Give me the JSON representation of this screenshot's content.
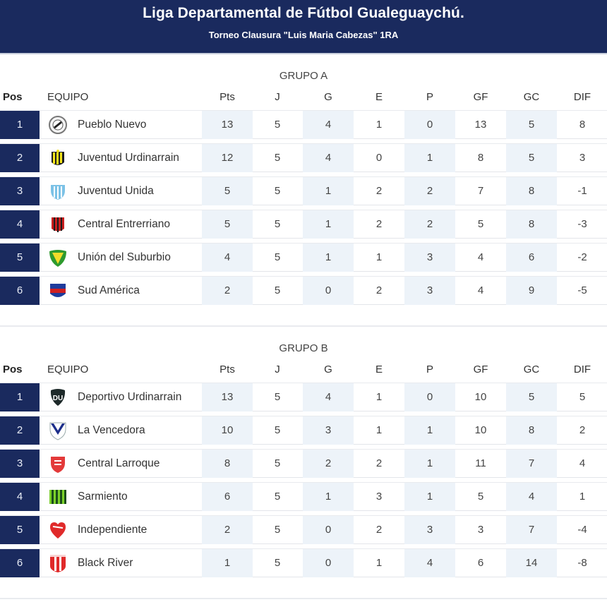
{
  "header": {
    "title": "Liga Departamental de Fútbol Gualeguaychú.",
    "subtitle": "Torneo Clausura \"Luis Maria Cabezas\" 1RA",
    "bg_color": "#1a2a5e"
  },
  "columns": [
    "Pos",
    "EQUIPO",
    "Pts",
    "J",
    "G",
    "E",
    "P",
    "GF",
    "GC",
    "DIF"
  ],
  "groups": [
    {
      "title": "GRUPO A",
      "rows": [
        {
          "pos": "1",
          "team": "Pueblo Nuevo",
          "logo": "pueblo-nuevo-crest",
          "pts": "13",
          "j": "5",
          "g": "4",
          "e": "1",
          "p": "0",
          "gf": "13",
          "gc": "5",
          "dif": "8"
        },
        {
          "pos": "2",
          "team": "Juventud Urdinarrain",
          "logo": "juventud-urdinarrain-crest",
          "pts": "12",
          "j": "5",
          "g": "4",
          "e": "0",
          "p": "1",
          "gf": "8",
          "gc": "5",
          "dif": "3"
        },
        {
          "pos": "3",
          "team": "Juventud Unida",
          "logo": "juventud-unida-crest",
          "pts": "5",
          "j": "5",
          "g": "1",
          "e": "2",
          "p": "2",
          "gf": "7",
          "gc": "8",
          "dif": "-1"
        },
        {
          "pos": "4",
          "team": "Central Entrerriano",
          "logo": "central-entrerriano-crest",
          "pts": "5",
          "j": "5",
          "g": "1",
          "e": "2",
          "p": "2",
          "gf": "5",
          "gc": "8",
          "dif": "-3"
        },
        {
          "pos": "5",
          "team": "Unión del Suburbio",
          "logo": "union-del-suburbio-crest",
          "pts": "4",
          "j": "5",
          "g": "1",
          "e": "1",
          "p": "3",
          "gf": "4",
          "gc": "6",
          "dif": "-2"
        },
        {
          "pos": "6",
          "team": "Sud América",
          "logo": "sud-america-crest",
          "pts": "2",
          "j": "5",
          "g": "0",
          "e": "2",
          "p": "3",
          "gf": "4",
          "gc": "9",
          "dif": "-5"
        }
      ]
    },
    {
      "title": "GRUPO B",
      "rows": [
        {
          "pos": "1",
          "team": "Deportivo Urdinarrain",
          "logo": "deportivo-urdinarrain-crest",
          "pts": "13",
          "j": "5",
          "g": "4",
          "e": "1",
          "p": "0",
          "gf": "10",
          "gc": "5",
          "dif": "5"
        },
        {
          "pos": "2",
          "team": "La Vencedora",
          "logo": "la-vencedora-crest",
          "pts": "10",
          "j": "5",
          "g": "3",
          "e": "1",
          "p": "1",
          "gf": "10",
          "gc": "8",
          "dif": "2"
        },
        {
          "pos": "3",
          "team": "Central Larroque",
          "logo": "central-larroque-crest",
          "pts": "8",
          "j": "5",
          "g": "2",
          "e": "2",
          "p": "1",
          "gf": "11",
          "gc": "7",
          "dif": "4"
        },
        {
          "pos": "4",
          "team": "Sarmiento",
          "logo": "sarmiento-crest",
          "pts": "6",
          "j": "5",
          "g": "1",
          "e": "3",
          "p": "1",
          "gf": "5",
          "gc": "4",
          "dif": "1"
        },
        {
          "pos": "5",
          "team": "Independiente",
          "logo": "independiente-crest",
          "pts": "2",
          "j": "5",
          "g": "0",
          "e": "2",
          "p": "3",
          "gf": "3",
          "gc": "7",
          "dif": "-4"
        },
        {
          "pos": "6",
          "team": "Black River",
          "logo": "black-river-crest",
          "pts": "1",
          "j": "5",
          "g": "0",
          "e": "1",
          "p": "4",
          "gf": "6",
          "gc": "14",
          "dif": "-8"
        }
      ]
    }
  ]
}
